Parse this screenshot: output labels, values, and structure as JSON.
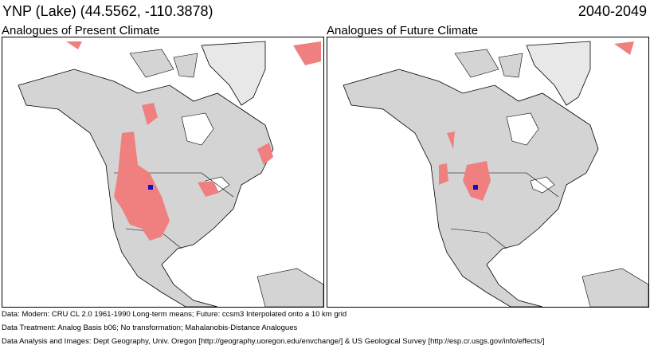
{
  "header": {
    "title": "YNP (Lake)  (44.5562, -110.3878)",
    "period": "2040-2049"
  },
  "panels": [
    {
      "title": "Analogues of Present Climate"
    },
    {
      "title": "Analogues of Future Climate"
    }
  ],
  "colors": {
    "land": "#d4d4d4",
    "analogue": "#f08080",
    "site": "#1010c0",
    "water": "#ffffff"
  },
  "footer": {
    "line1": "Data:  Modern: CRU CL 2.0 1961-1990 Long-term means; Future: ccsm3 Interpolated onto a 10 km grid",
    "line2": "Data Treatment:  Analog Basis b06; No transformation; Mahalanobis-Distance Analogues",
    "line3": "Data Analysis and Images:  Dept Geography, Univ. Oregon [http://geography.uoregon.edu/envchange/] & US Geological Survey [http://esp.cr.usgs.gov/info/effects/]"
  }
}
